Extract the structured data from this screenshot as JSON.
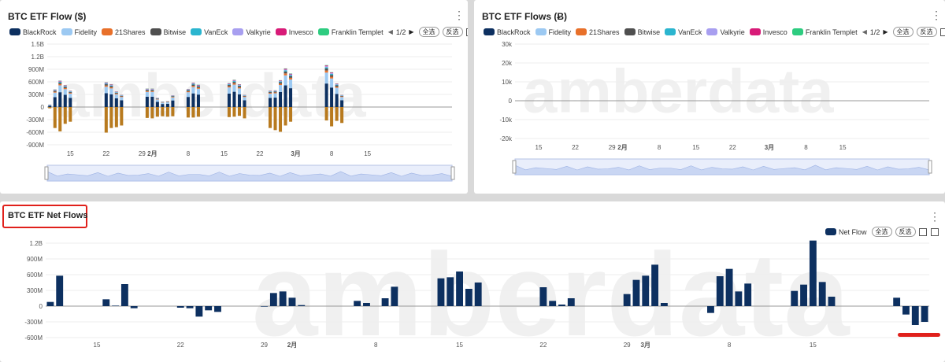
{
  "panels": {
    "usd": {
      "title": "BTC ETF Flow ($)",
      "pager": "1/2",
      "legend": [
        {
          "name": "BlackRock",
          "color": "#0d3060"
        },
        {
          "name": "Fidelity",
          "color": "#9cc9f2"
        },
        {
          "name": "21Shares",
          "color": "#e8702a"
        },
        {
          "name": "Bitwise",
          "color": "#4f4f4f"
        },
        {
          "name": "VanEck",
          "color": "#2bb5cf"
        },
        {
          "name": "Valkyrie",
          "color": "#a89ff0"
        },
        {
          "name": "Invesco",
          "color": "#d81b78"
        },
        {
          "name": "Franklin Templet",
          "color": "#2ecc80"
        }
      ]
    },
    "btc": {
      "title": "BTC ETF Flows (Ƀ)",
      "pager": "1/2",
      "legend": [
        {
          "name": "BlackRock",
          "color": "#0d3060"
        },
        {
          "name": "Fidelity",
          "color": "#9cc9f2"
        },
        {
          "name": "21Shares",
          "color": "#e8702a"
        },
        {
          "name": "Bitwise",
          "color": "#4f4f4f"
        },
        {
          "name": "VanEck",
          "color": "#2bb5cf"
        },
        {
          "name": "Valkyrie",
          "color": "#a89ff0"
        },
        {
          "name": "Invesco",
          "color": "#d81b78"
        },
        {
          "name": "Franklin Templet",
          "color": "#2ecc80"
        }
      ]
    },
    "net": {
      "title": "BTC ETF Net Flows",
      "legend": [
        {
          "name": "Net Flow",
          "color": "#0d3060"
        }
      ]
    }
  },
  "controls": {
    "select_all": "全选",
    "invert": "反选"
  },
  "watermark": "amberdata",
  "chart_data": [
    {
      "type": "bar",
      "title": "BTC ETF Flow ($)",
      "stacked": true,
      "ylim": [
        -900,
        1500
      ],
      "yticks": [
        "1.5B",
        "1.2B",
        "900M",
        "600M",
        "300M",
        "0",
        "-300M",
        "-600M",
        "-900M"
      ],
      "ytick_values": [
        1500,
        1200,
        900,
        600,
        300,
        0,
        -300,
        -600,
        -900
      ],
      "y_units": "M",
      "xticks": [
        "15",
        "22",
        "29",
        "2月",
        "8",
        "15",
        "22",
        "3月",
        "8",
        "15"
      ],
      "xtick_index": [
        4,
        11,
        18,
        20,
        27,
        34,
        41,
        48,
        55,
        62
      ],
      "positive_total": [
        60,
        420,
        630,
        520,
        390,
        0,
        0,
        0,
        0,
        0,
        0,
        590,
        540,
        370,
        290,
        0,
        0,
        0,
        0,
        440,
        440,
        220,
        130,
        140,
        280,
        0,
        0,
        430,
        580,
        530,
        0,
        0,
        0,
        0,
        0,
        570,
        650,
        540,
        290,
        0,
        0,
        0,
        0,
        390,
        400,
        640,
        920,
        800,
        0,
        0,
        0,
        0,
        0,
        0,
        1000,
        830,
        560,
        290,
        0,
        0,
        0,
        0,
        0,
        0,
        0,
        0,
        0,
        0,
        0,
        0,
        0,
        0,
        0,
        0,
        0,
        0,
        0,
        0,
        0
      ],
      "outflow": [
        -30,
        -500,
        -580,
        -400,
        -350,
        0,
        0,
        0,
        0,
        0,
        0,
        -610,
        -500,
        -480,
        -440,
        0,
        0,
        0,
        0,
        -260,
        -270,
        -230,
        -220,
        -230,
        -220,
        0,
        0,
        -250,
        -250,
        -230,
        0,
        0,
        0,
        0,
        0,
        -240,
        -230,
        -210,
        -270,
        0,
        0,
        0,
        0,
        -500,
        -550,
        -590,
        -440,
        -350,
        0,
        0,
        0,
        0,
        0,
        0,
        -320,
        -460,
        -330,
        -380,
        0,
        0,
        0,
        0,
        0,
        0,
        0,
        0,
        0,
        0,
        0,
        0,
        0,
        0,
        0,
        0,
        0,
        0,
        0,
        0,
        0
      ]
    },
    {
      "type": "bar",
      "title": "BTC ETF Flows (Ƀ)",
      "stacked": true,
      "ylim": [
        -20000,
        30000
      ],
      "yticks": [
        "30k",
        "20k",
        "10k",
        "0",
        "-10k",
        "-20k"
      ],
      "ytick_values": [
        30000,
        20000,
        10000,
        0,
        -10000,
        -20000
      ],
      "xticks": [
        "15",
        "22",
        "29",
        "2月",
        "8",
        "15",
        "22",
        "3月",
        "8",
        "15"
      ],
      "xtick_index": [
        4,
        11,
        18,
        20,
        27,
        34,
        41,
        48,
        55,
        62
      ]
    },
    {
      "type": "bar",
      "title": "BTC ETF Net Flows",
      "series": [
        {
          "name": "Net Flow",
          "color": "#0d3060"
        }
      ],
      "ylim": [
        -600,
        1200
      ],
      "yticks": [
        "1.2B",
        "900M",
        "600M",
        "300M",
        "0",
        "-300M",
        "-600M"
      ],
      "ytick_values": [
        1200,
        900,
        600,
        300,
        0,
        -300,
        -600
      ],
      "y_units": "M",
      "xticks": [
        "15",
        "22",
        "29",
        "2月",
        "8",
        "15",
        "22",
        "29",
        "3月",
        "8",
        "15"
      ],
      "xtick_index": [
        5,
        14,
        23,
        26,
        35,
        44,
        53,
        62,
        64,
        73,
        82
      ],
      "values": [
        80,
        580,
        0,
        0,
        0,
        0,
        130,
        10,
        420,
        -40,
        0,
        0,
        0,
        0,
        -30,
        -40,
        -200,
        -80,
        -110,
        0,
        0,
        0,
        0,
        -10,
        250,
        280,
        160,
        20,
        0,
        0,
        0,
        0,
        0,
        100,
        60,
        0,
        150,
        370,
        0,
        0,
        0,
        0,
        530,
        550,
        660,
        330,
        450,
        0,
        0,
        0,
        0,
        0,
        0,
        360,
        100,
        30,
        150,
        0,
        0,
        0,
        0,
        0,
        230,
        500,
        580,
        790,
        60,
        0,
        0,
        0,
        0,
        -130,
        570,
        710,
        280,
        430,
        0,
        0,
        0,
        0,
        290,
        410,
        1250,
        460,
        180,
        0,
        0,
        0,
        0,
        0,
        0,
        160,
        -160,
        -360,
        -300
      ]
    }
  ]
}
